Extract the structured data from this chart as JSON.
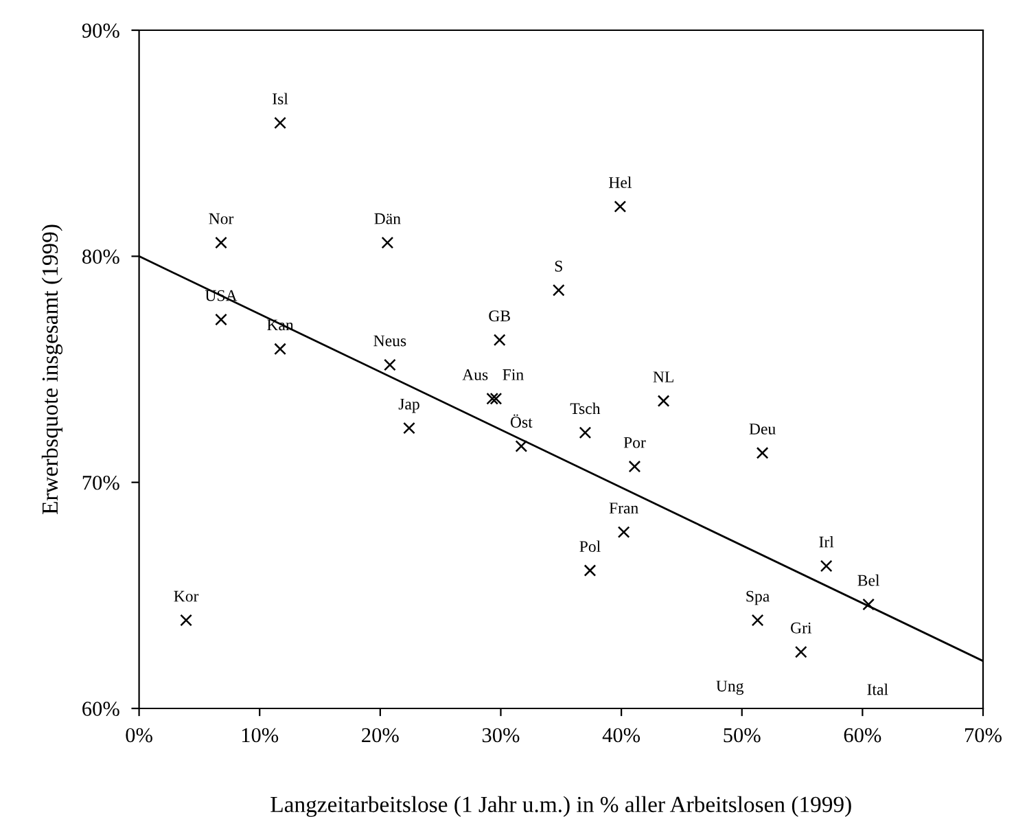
{
  "chart_data": {
    "type": "scatter",
    "xlabel": "Langzeitarbeitslose (1 Jahr u.m.) in % aller Arbeitslosen (1999)",
    "ylabel": "Erwerbsquote insgesamt (1999)",
    "xlim": [
      0,
      70
    ],
    "ylim": [
      60,
      90
    ],
    "xticks": [
      {
        "value": 0,
        "label": "0%"
      },
      {
        "value": 10,
        "label": "10%"
      },
      {
        "value": 20,
        "label": "20%"
      },
      {
        "value": 30,
        "label": "30%"
      },
      {
        "value": 40,
        "label": "40%"
      },
      {
        "value": 50,
        "label": "50%"
      },
      {
        "value": 60,
        "label": "60%"
      },
      {
        "value": 70,
        "label": "70%"
      }
    ],
    "yticks": [
      {
        "value": 60,
        "label": "60%"
      },
      {
        "value": 70,
        "label": "70%"
      },
      {
        "value": 80,
        "label": "80%"
      },
      {
        "value": 90,
        "label": "90%"
      }
    ],
    "grid": false,
    "marker": "cross",
    "series": [
      {
        "color": "#000000",
        "x": [
          11.7,
          6.8,
          20.6,
          6.8,
          11.7,
          20.8,
          29.9,
          29.3,
          29.6,
          22.4,
          31.7,
          39.9,
          34.8,
          43.5,
          37.0,
          41.1,
          51.7,
          40.2,
          37.4,
          57.0,
          60.5,
          51.3,
          54.9,
          3.9
        ],
        "values": [
          85.9,
          80.6,
          80.6,
          77.2,
          75.9,
          75.2,
          76.3,
          73.7,
          73.7,
          72.4,
          71.6,
          82.2,
          78.5,
          73.6,
          72.2,
          70.7,
          71.3,
          67.8,
          66.1,
          66.3,
          64.6,
          63.9,
          62.5,
          63.9
        ]
      },
      {
        "type": "line",
        "color": "#000000",
        "marker": "none",
        "line_style": "solid",
        "x": [
          0,
          70
        ],
        "values": [
          80.0,
          62.1
        ]
      }
    ],
    "annotations": [
      {
        "text": "Isl",
        "x": 11.7,
        "y": 85.9
      },
      {
        "text": "Nor",
        "x": 6.8,
        "y": 80.6
      },
      {
        "text": "Dän",
        "x": 20.6,
        "y": 80.6
      },
      {
        "text": "USA",
        "x": 6.8,
        "y": 77.2
      },
      {
        "text": "Kan",
        "x": 11.7,
        "y": 75.9
      },
      {
        "text": "Neus",
        "x": 20.8,
        "y": 75.2
      },
      {
        "text": "GB",
        "x": 29.9,
        "y": 76.3
      },
      {
        "text": "Aus",
        "x": 29.3,
        "y": 73.7
      },
      {
        "text": "Fin",
        "x": 29.6,
        "y": 73.7
      },
      {
        "text": "Jap",
        "x": 22.4,
        "y": 72.4
      },
      {
        "text": "Öst",
        "x": 31.7,
        "y": 71.6
      },
      {
        "text": "Hel",
        "x": 39.9,
        "y": 82.2
      },
      {
        "text": "S",
        "x": 34.8,
        "y": 78.5
      },
      {
        "text": "NL",
        "x": 43.5,
        "y": 73.6
      },
      {
        "text": "Tsch",
        "x": 37.0,
        "y": 72.2
      },
      {
        "text": "Por",
        "x": 41.1,
        "y": 70.7
      },
      {
        "text": "Deu",
        "x": 51.7,
        "y": 71.3
      },
      {
        "text": "Fran",
        "x": 40.2,
        "y": 67.8
      },
      {
        "text": "Pol",
        "x": 37.4,
        "y": 66.1
      },
      {
        "text": "Irl",
        "x": 57.0,
        "y": 66.3
      },
      {
        "text": "Bel",
        "x": 60.5,
        "y": 64.6
      },
      {
        "text": "Spa",
        "x": 51.3,
        "y": 63.9
      },
      {
        "text": "Gri",
        "x": 54.9,
        "y": 62.5
      },
      {
        "text": "Kor",
        "x": 3.9,
        "y": 63.9
      },
      "Ung",
      "Ital"
    ]
  }
}
